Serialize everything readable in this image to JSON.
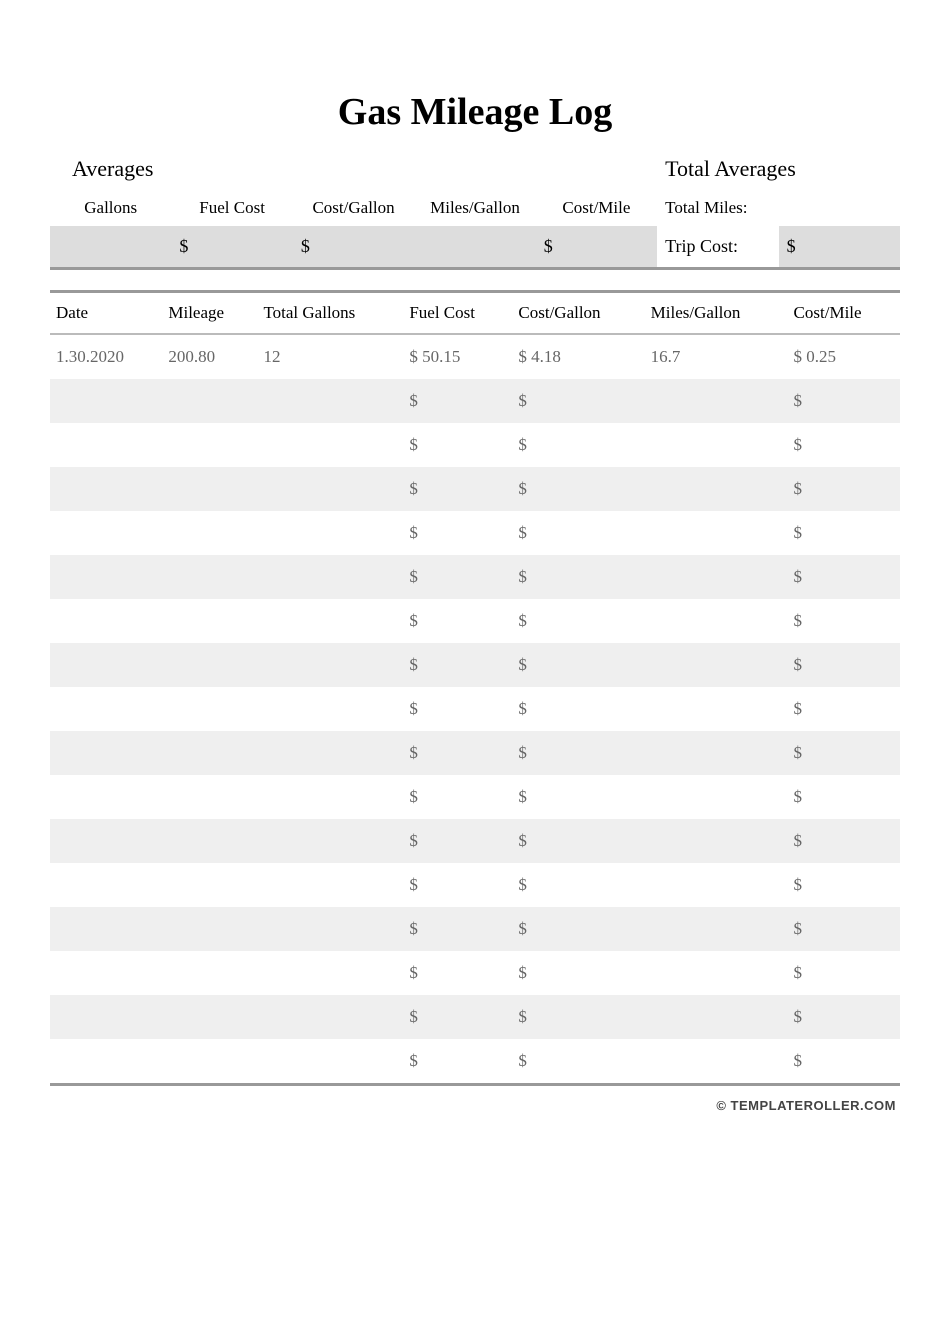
{
  "title": "Gas Mileage Log",
  "averages_section": {
    "heading_left": "Averages",
    "heading_right": "Total Averages",
    "labels": {
      "gallons": "Gallons",
      "fuel_cost": "Fuel Cost",
      "cost_gallon": "Cost/Gallon",
      "miles_gallon": "Miles/Gallon",
      "cost_mile": "Cost/Mile",
      "total_miles": "Total Miles:",
      "trip_cost": "Trip Cost:"
    },
    "values": {
      "gallons": "",
      "fuel_cost": "$",
      "cost_gallon": "$",
      "miles_gallon": "",
      "cost_mile": "$",
      "total_miles": "",
      "trip_cost": "$"
    }
  },
  "log_table": {
    "columns": [
      "Date",
      "Mileage",
      "Total Gallons",
      "Fuel Cost",
      "Cost/Gallon",
      "Miles/Gallon",
      "Cost/Mile"
    ],
    "rows": [
      [
        "1.30.2020",
        "200.80",
        "12",
        "$ 50.15",
        "$ 4.18",
        "16.7",
        "$ 0.25"
      ],
      [
        "",
        "",
        "",
        "$",
        "$",
        "",
        "$"
      ],
      [
        "",
        "",
        "",
        "$",
        "$",
        "",
        "$"
      ],
      [
        "",
        "",
        "",
        "$",
        "$",
        "",
        "$"
      ],
      [
        "",
        "",
        "",
        "$",
        "$",
        "",
        "$"
      ],
      [
        "",
        "",
        "",
        "$",
        "$",
        "",
        "$"
      ],
      [
        "",
        "",
        "",
        "$",
        "$",
        "",
        "$"
      ],
      [
        "",
        "",
        "",
        "$",
        "$",
        "",
        "$"
      ],
      [
        "",
        "",
        "",
        "$",
        "$",
        "",
        "$"
      ],
      [
        "",
        "",
        "",
        "$",
        "$",
        "",
        "$"
      ],
      [
        "",
        "",
        "",
        "$",
        "$",
        "",
        "$"
      ],
      [
        "",
        "",
        "",
        "$",
        "$",
        "",
        "$"
      ],
      [
        "",
        "",
        "",
        "$",
        "$",
        "",
        "$"
      ],
      [
        "",
        "",
        "",
        "$",
        "$",
        "",
        "$"
      ],
      [
        "",
        "",
        "",
        "$",
        "$",
        "",
        "$"
      ],
      [
        "",
        "",
        "",
        "$",
        "$",
        "",
        "$"
      ],
      [
        "",
        "",
        "",
        "$",
        "$",
        "",
        "$"
      ]
    ],
    "header_fontsize": 17,
    "cell_fontsize": 17,
    "header_color": "#000000",
    "cell_color": "#666666",
    "row_bg_odd": "#ffffff",
    "row_bg_even": "#efefef",
    "border_color": "#999999"
  },
  "footer": "© TEMPLATEROLLER.COM",
  "colors": {
    "page_bg": "#ffffff",
    "top_value_bg": "#dddddd",
    "text": "#000000",
    "muted_text": "#666666"
  }
}
